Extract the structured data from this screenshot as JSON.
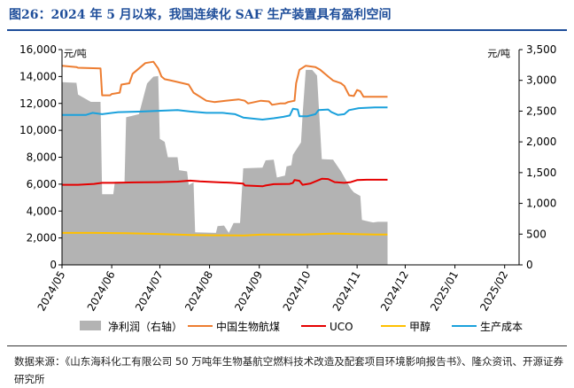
{
  "figure": {
    "title": "图26：2024 年 5 月以来，我国连续化 SAF 生产装置具有盈利空间",
    "source": "数据来源：《山东海科化工有限公司 50 万吨年生物基航空燃料技术改造及配套项目环境影响报告书》、隆众资讯、开源证券研究所"
  },
  "chart_data": {
    "type": "line",
    "ylabel_left": "元/吨",
    "ylabel_right": "元/吨",
    "ylim_left": [
      0,
      16000
    ],
    "ylim_right": [
      0,
      3500
    ],
    "yticks_left": [
      "0",
      "2,000",
      "4,000",
      "6,000",
      "8,000",
      "10,000",
      "12,000",
      "14,000",
      "16,000"
    ],
    "yticks_right": [
      "0",
      "500",
      "1,000",
      "1,500",
      "2,000",
      "2,500",
      "3,000",
      "3,500"
    ],
    "x_range": [
      0,
      285
    ],
    "x_ticks": [
      {
        "label": "2024/05",
        "x": 0
      },
      {
        "label": "2024/06",
        "x": 31
      },
      {
        "label": "2024/07",
        "x": 61
      },
      {
        "label": "2024/08",
        "x": 92
      },
      {
        "label": "2024/09",
        "x": 123
      },
      {
        "label": "2024/10",
        "x": 153
      },
      {
        "label": "2024/11",
        "x": 184
      },
      {
        "label": "2024/12",
        "x": 214
      },
      {
        "label": "2025/01",
        "x": 245
      },
      {
        "label": "2025/02",
        "x": 276
      }
    ],
    "legend_position": "bottom",
    "series": [
      {
        "name": "净利润（右轴）",
        "kind": "area",
        "axis": "right",
        "color": "#b3b3b3",
        "points": [
          [
            0,
            2970
          ],
          [
            9,
            2960
          ],
          [
            10,
            2770
          ],
          [
            18,
            2650
          ],
          [
            24,
            2650
          ],
          [
            25,
            1150
          ],
          [
            32,
            1150
          ],
          [
            33,
            1350
          ],
          [
            39,
            1350
          ],
          [
            40,
            2400
          ],
          [
            48,
            2450
          ],
          [
            53,
            2950
          ],
          [
            57,
            3060
          ],
          [
            60,
            3070
          ],
          [
            61,
            2050
          ],
          [
            64,
            2000
          ],
          [
            66,
            1750
          ],
          [
            72,
            1750
          ],
          [
            73,
            1540
          ],
          [
            78,
            1520
          ],
          [
            79,
            1300
          ],
          [
            82,
            1340
          ],
          [
            83,
            530
          ],
          [
            96,
            520
          ],
          [
            97,
            630
          ],
          [
            101,
            640
          ],
          [
            103,
            560
          ],
          [
            104,
            520
          ],
          [
            107,
            680
          ],
          [
            111,
            680
          ],
          [
            113,
            1570
          ],
          [
            125,
            1580
          ],
          [
            127,
            1700
          ],
          [
            132,
            1710
          ],
          [
            134,
            1420
          ],
          [
            139,
            1450
          ],
          [
            140,
            1600
          ],
          [
            143,
            1620
          ],
          [
            144,
            1790
          ],
          [
            149,
            1990
          ],
          [
            150,
            2440
          ],
          [
            152,
            3170
          ],
          [
            156,
            3170
          ],
          [
            159,
            3080
          ],
          [
            162,
            1720
          ],
          [
            169,
            1710
          ],
          [
            174,
            1520
          ],
          [
            180,
            1240
          ],
          [
            182,
            1180
          ],
          [
            186,
            1120
          ],
          [
            187,
            730
          ],
          [
            192,
            700
          ],
          [
            194,
            690
          ],
          [
            197,
            700
          ],
          [
            198,
            700
          ],
          [
            203,
            700
          ]
        ]
      },
      {
        "name": "中国生物航煤",
        "kind": "line",
        "axis": "left",
        "color": "#ed7d31",
        "points": [
          [
            0,
            14800
          ],
          [
            9,
            14700
          ],
          [
            10,
            14650
          ],
          [
            24,
            14600
          ],
          [
            25,
            12600
          ],
          [
            30,
            12600
          ],
          [
            31,
            12700
          ],
          [
            36,
            12800
          ],
          [
            37,
            13400
          ],
          [
            42,
            13500
          ],
          [
            44,
            14200
          ],
          [
            52,
            15000
          ],
          [
            57,
            15100
          ],
          [
            60,
            14600
          ],
          [
            62,
            14000
          ],
          [
            64,
            13800
          ],
          [
            68,
            13700
          ],
          [
            79,
            13400
          ],
          [
            82,
            12800
          ],
          [
            90,
            12200
          ],
          [
            95,
            12100
          ],
          [
            102,
            12200
          ],
          [
            110,
            12300
          ],
          [
            114,
            12200
          ],
          [
            116,
            12000
          ],
          [
            124,
            12200
          ],
          [
            129,
            12150
          ],
          [
            131,
            11900
          ],
          [
            136,
            12000
          ],
          [
            139,
            12000
          ],
          [
            141,
            12100
          ],
          [
            145,
            12200
          ],
          [
            146,
            13500
          ],
          [
            148,
            14500
          ],
          [
            152,
            14800
          ],
          [
            158,
            14700
          ],
          [
            161,
            14500
          ],
          [
            166,
            14000
          ],
          [
            169,
            13700
          ],
          [
            174,
            13500
          ],
          [
            176,
            13300
          ],
          [
            179,
            12600
          ],
          [
            182,
            12550
          ],
          [
            184,
            13000
          ],
          [
            186,
            12900
          ],
          [
            188,
            12500
          ],
          [
            190,
            12500
          ],
          [
            195,
            12500
          ],
          [
            203,
            12500
          ]
        ]
      },
      {
        "name": "UCO",
        "kind": "line",
        "axis": "left",
        "color": "#e50000",
        "points": [
          [
            0,
            5950
          ],
          [
            10,
            5950
          ],
          [
            20,
            6020
          ],
          [
            25,
            6100
          ],
          [
            30,
            6100
          ],
          [
            45,
            6130
          ],
          [
            60,
            6150
          ],
          [
            72,
            6190
          ],
          [
            80,
            6260
          ],
          [
            86,
            6200
          ],
          [
            96,
            6150
          ],
          [
            106,
            6100
          ],
          [
            113,
            6040
          ],
          [
            114,
            5900
          ],
          [
            125,
            5840
          ],
          [
            127,
            5900
          ],
          [
            132,
            6000
          ],
          [
            142,
            6020
          ],
          [
            144,
            6100
          ],
          [
            145,
            6300
          ],
          [
            148,
            6250
          ],
          [
            150,
            5950
          ],
          [
            155,
            6050
          ],
          [
            160,
            6300
          ],
          [
            162,
            6400
          ],
          [
            166,
            6380
          ],
          [
            170,
            6150
          ],
          [
            176,
            6100
          ],
          [
            180,
            6150
          ],
          [
            184,
            6300
          ],
          [
            190,
            6330
          ],
          [
            197,
            6330
          ],
          [
            203,
            6330
          ]
        ]
      },
      {
        "name": "甲醇",
        "kind": "line",
        "axis": "left",
        "color": "#ffc000",
        "points": [
          [
            0,
            2380
          ],
          [
            20,
            2380
          ],
          [
            40,
            2350
          ],
          [
            60,
            2300
          ],
          [
            80,
            2220
          ],
          [
            95,
            2200
          ],
          [
            110,
            2190
          ],
          [
            113,
            2180
          ],
          [
            125,
            2250
          ],
          [
            140,
            2260
          ],
          [
            150,
            2250
          ],
          [
            162,
            2300
          ],
          [
            170,
            2330
          ],
          [
            185,
            2280
          ],
          [
            195,
            2250
          ],
          [
            203,
            2250
          ]
        ]
      },
      {
        "name": "生产成本",
        "kind": "line",
        "axis": "left",
        "color": "#1ba1dc",
        "points": [
          [
            0,
            11150
          ],
          [
            15,
            11150
          ],
          [
            19,
            11300
          ],
          [
            25,
            11200
          ],
          [
            35,
            11350
          ],
          [
            50,
            11400
          ],
          [
            60,
            11450
          ],
          [
            72,
            11500
          ],
          [
            80,
            11400
          ],
          [
            90,
            11300
          ],
          [
            100,
            11300
          ],
          [
            108,
            11200
          ],
          [
            113,
            10950
          ],
          [
            125,
            10800
          ],
          [
            132,
            10900
          ],
          [
            138,
            11000
          ],
          [
            142,
            11100
          ],
          [
            144,
            11600
          ],
          [
            147,
            11550
          ],
          [
            148,
            11050
          ],
          [
            153,
            11050
          ],
          [
            158,
            11200
          ],
          [
            160,
            11500
          ],
          [
            166,
            11550
          ],
          [
            168,
            11350
          ],
          [
            172,
            11150
          ],
          [
            176,
            11200
          ],
          [
            179,
            11500
          ],
          [
            185,
            11650
          ],
          [
            195,
            11700
          ],
          [
            203,
            11700
          ]
        ]
      }
    ]
  }
}
